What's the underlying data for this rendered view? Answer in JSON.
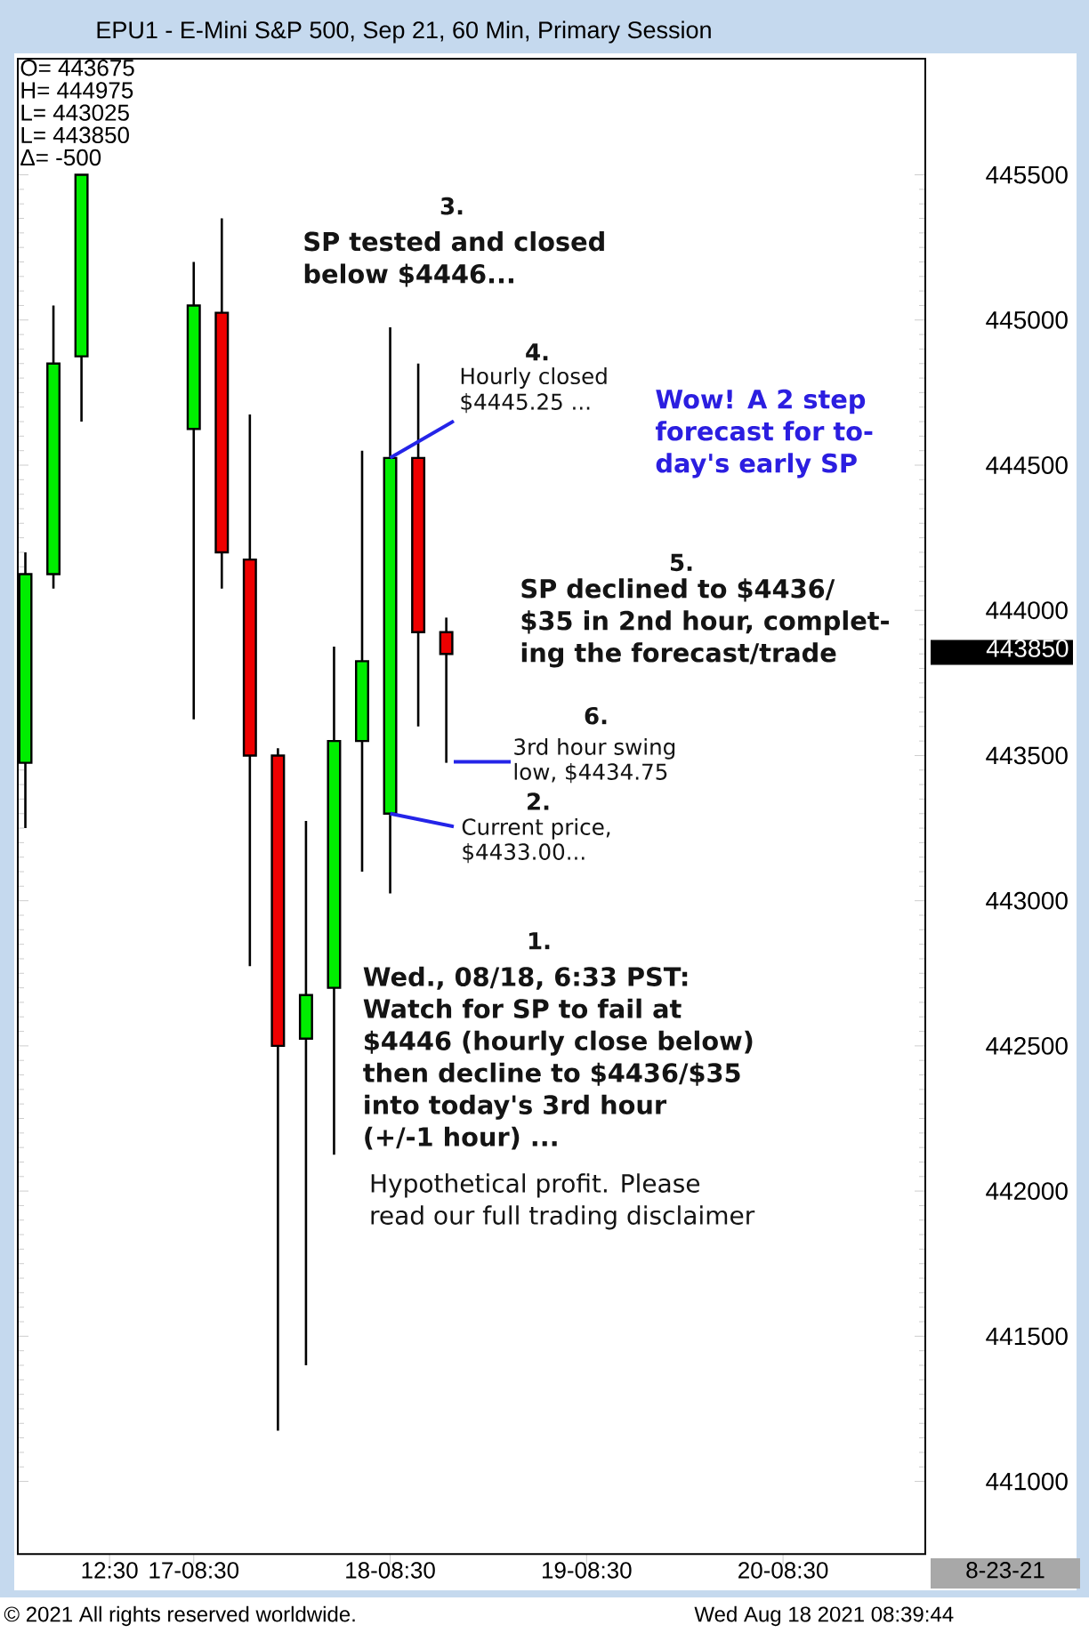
{
  "chart_data": {
    "type": "candlestick",
    "title": "EPU1 - E-Mini S&P 500, Sep 21, 60 Min, Primary Session",
    "categories": [
      null,
      null,
      null,
      "12:30",
      null,
      null,
      "17-08:30",
      null,
      null,
      null,
      null,
      null,
      null,
      "18-08:30",
      null,
      null,
      null,
      null,
      null,
      null,
      "19-08:30",
      null,
      null,
      null,
      null,
      null,
      null,
      "20-08:30",
      null,
      null,
      null,
      null,
      null
    ],
    "ohlc": [
      [
        443475,
        444200,
        443250,
        444125
      ],
      [
        444125,
        445050,
        444075,
        444850
      ],
      [
        444875,
        445500,
        444650,
        445500
      ],
      null,
      null,
      null,
      [
        444625,
        445200,
        443625,
        445050
      ],
      [
        445025,
        445350,
        444075,
        444200
      ],
      [
        444175,
        444675,
        442775,
        443500
      ],
      [
        443500,
        443525,
        441175,
        442500
      ],
      [
        442525,
        443275,
        441400,
        442675
      ],
      [
        442700,
        443875,
        442125,
        443550
      ],
      [
        443550,
        444550,
        443100,
        443825
      ],
      [
        443300,
        444975,
        443025,
        444525
      ],
      [
        444525,
        444850,
        443600,
        443925
      ],
      [
        443925,
        443975,
        443475,
        443850
      ],
      null,
      null,
      null,
      null,
      null,
      null,
      null,
      null,
      null,
      null,
      null,
      null,
      null,
      null,
      null,
      null,
      null
    ],
    "colors": [
      "#00ee00",
      "#00ee00",
      "#00ee00",
      null,
      null,
      null,
      "#00ee00",
      "#ee0000",
      "#ee0000",
      "#ee0000",
      "#00ee00",
      "#00ee00",
      "#00ee00",
      "#00ee00",
      "#ee0000",
      "#ee0000",
      null,
      null,
      null,
      null,
      null,
      null,
      null,
      null,
      null,
      null,
      null,
      null,
      null,
      null,
      null,
      null,
      null
    ],
    "ylim": [
      440750,
      445900
    ],
    "yticks": [
      441000,
      441500,
      442000,
      442500,
      443000,
      443500,
      444000,
      444500,
      445000,
      445500
    ],
    "annotations": [
      "O= 443675",
      "H= 444975",
      "L= 443025",
      "L= 443850",
      "Δ= -500",
      "3.",
      "SP tested and closed",
      "below $4446...",
      "4.",
      "Hourly closed",
      {
        "text": "$4445.25 ...",
        "x": "18-08:30",
        "y": 444525
      },
      "Wow! A 2 step",
      "forecast for to-",
      "day's early SP",
      "5.",
      "SP declined to $4436/",
      "$35 in 2nd hour, complet-",
      "ing the forecast/trade",
      "6.",
      "3rd hour swing",
      "low, $4434.75",
      "2.",
      "Current price,",
      {
        "text": "$4433.00...",
        "x": "18-08:30",
        "y": 443300
      },
      "1.",
      "Wed., 08/18, 6:33 PST:",
      "Watch for SP to fail at",
      "$4446 (hourly close below)",
      "then decline to $4436/$35",
      "into today's 3rd hour",
      "(+/-1 hour) ...",
      "Hypothetical profit. Please",
      "read our full trading disclaimer",
      "443850",
      "8-23-21",
      "© 2021 All rights reserved worldwide.",
      "Wed Aug 18 2021 08:39:44"
    ]
  }
}
